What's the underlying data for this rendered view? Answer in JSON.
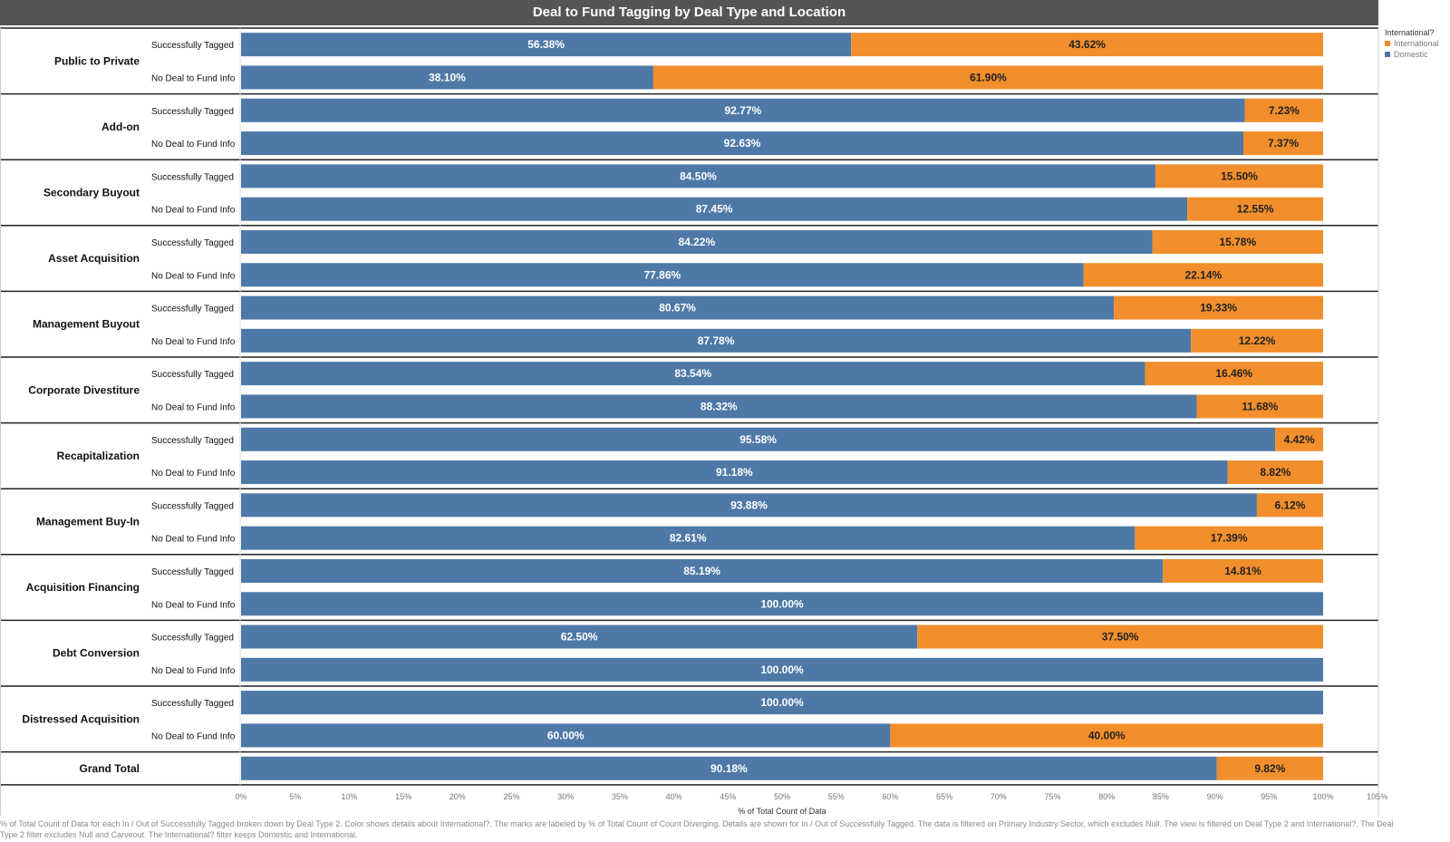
{
  "chart_data": {
    "type": "bar",
    "orientation": "horizontal",
    "stacked": true,
    "title": "Deal to Fund Tagging by Deal Type and Location",
    "xlabel": "% of Total Count of Data",
    "xlim": [
      0,
      105
    ],
    "x_ticks": [
      "0%",
      "5%",
      "10%",
      "15%",
      "20%",
      "25%",
      "30%",
      "35%",
      "40%",
      "45%",
      "50%",
      "55%",
      "60%",
      "65%",
      "70%",
      "75%",
      "80%",
      "85%",
      "90%",
      "95%",
      "100%",
      "105%"
    ],
    "legend": {
      "title": "International?",
      "position": "top-right",
      "items": [
        {
          "label": "International",
          "color": "#f28e2b"
        },
        {
          "label": "Domestic",
          "color": "#4e79a7"
        }
      ]
    },
    "series_colors": {
      "Domestic": "#4e79a7",
      "International": "#f28e2b"
    },
    "groups": [
      {
        "name": "Public to Private",
        "rows": [
          {
            "label": "Successfully Tagged",
            "domestic": 56.38,
            "international": 43.62,
            "domestic_label": "56.38%",
            "international_label": "43.62%"
          },
          {
            "label": "No Deal to Fund Info",
            "domestic": 38.1,
            "international": 61.9,
            "domestic_label": "38.10%",
            "international_label": "61.90%"
          }
        ]
      },
      {
        "name": "Add-on",
        "rows": [
          {
            "label": "Successfully Tagged",
            "domestic": 92.77,
            "international": 7.23,
            "domestic_label": "92.77%",
            "international_label": "7.23%"
          },
          {
            "label": "No Deal to Fund Info",
            "domestic": 92.63,
            "international": 7.37,
            "domestic_label": "92.63%",
            "international_label": "7.37%"
          }
        ]
      },
      {
        "name": "Secondary Buyout",
        "rows": [
          {
            "label": "Successfully Tagged",
            "domestic": 84.5,
            "international": 15.5,
            "domestic_label": "84.50%",
            "international_label": "15.50%"
          },
          {
            "label": "No Deal to Fund Info",
            "domestic": 87.45,
            "international": 12.55,
            "domestic_label": "87.45%",
            "international_label": "12.55%"
          }
        ]
      },
      {
        "name": "Asset Acquisition",
        "rows": [
          {
            "label": "Successfully Tagged",
            "domestic": 84.22,
            "international": 15.78,
            "domestic_label": "84.22%",
            "international_label": "15.78%"
          },
          {
            "label": "No Deal to Fund Info",
            "domestic": 77.86,
            "international": 22.14,
            "domestic_label": "77.86%",
            "international_label": "22.14%"
          }
        ]
      },
      {
        "name": "Management Buyout",
        "rows": [
          {
            "label": "Successfully Tagged",
            "domestic": 80.67,
            "international": 19.33,
            "domestic_label": "80.67%",
            "international_label": "19.33%"
          },
          {
            "label": "No Deal to Fund Info",
            "domestic": 87.78,
            "international": 12.22,
            "domestic_label": "87.78%",
            "international_label": "12.22%"
          }
        ]
      },
      {
        "name": "Corporate Divestiture",
        "rows": [
          {
            "label": "Successfully Tagged",
            "domestic": 83.54,
            "international": 16.46,
            "domestic_label": "83.54%",
            "international_label": "16.46%"
          },
          {
            "label": "No Deal to Fund Info",
            "domestic": 88.32,
            "international": 11.68,
            "domestic_label": "88.32%",
            "international_label": "11.68%"
          }
        ]
      },
      {
        "name": "Recapitalization",
        "rows": [
          {
            "label": "Successfully Tagged",
            "domestic": 95.58,
            "international": 4.42,
            "domestic_label": "95.58%",
            "international_label": "4.42%"
          },
          {
            "label": "No Deal to Fund Info",
            "domestic": 91.18,
            "international": 8.82,
            "domestic_label": "91.18%",
            "international_label": "8.82%"
          }
        ]
      },
      {
        "name": "Management Buy-In",
        "rows": [
          {
            "label": "Successfully Tagged",
            "domestic": 93.88,
            "international": 6.12,
            "domestic_label": "93.88%",
            "international_label": "6.12%"
          },
          {
            "label": "No Deal to Fund Info",
            "domestic": 82.61,
            "international": 17.39,
            "domestic_label": "82.61%",
            "international_label": "17.39%"
          }
        ]
      },
      {
        "name": "Acquisition Financing",
        "rows": [
          {
            "label": "Successfully Tagged",
            "domestic": 85.19,
            "international": 14.81,
            "domestic_label": "85.19%",
            "international_label": "14.81%"
          },
          {
            "label": "No Deal to Fund Info",
            "domestic": 100.0,
            "international": 0,
            "domestic_label": "100.00%",
            "international_label": ""
          }
        ]
      },
      {
        "name": "Debt Conversion",
        "rows": [
          {
            "label": "Successfully Tagged",
            "domestic": 62.5,
            "international": 37.5,
            "domestic_label": "62.50%",
            "international_label": "37.50%"
          },
          {
            "label": "No Deal to Fund Info",
            "domestic": 100.0,
            "international": 0,
            "domestic_label": "100.00%",
            "international_label": ""
          }
        ]
      },
      {
        "name": "Distressed Acquisition",
        "rows": [
          {
            "label": "Successfully Tagged",
            "domestic": 100.0,
            "international": 0,
            "domestic_label": "100.00%",
            "international_label": ""
          },
          {
            "label": "No Deal to Fund Info",
            "domestic": 60.0,
            "international": 40.0,
            "domestic_label": "60.00%",
            "international_label": "40.00%"
          }
        ]
      },
      {
        "name": "Grand Total",
        "rows": [
          {
            "label": "",
            "domestic": 90.18,
            "international": 9.82,
            "domestic_label": "90.18%",
            "international_label": "9.82%"
          }
        ]
      }
    ],
    "footer": "% of Total Count of Data for each In / Out of Successfully Tagged broken down by Deal Type 2.  Color shows details about International?.  The marks are labeled by % of Total Count of Count Diverging.  Details are shown for In / Out of Successfully Tagged. The data is filtered on Primary Industry Sector, which excludes Null. The view is filtered on Deal Type 2 and International?. The Deal Type 2 filter excludes Null and Carveout. The International? filter keeps Domestic and International."
  }
}
